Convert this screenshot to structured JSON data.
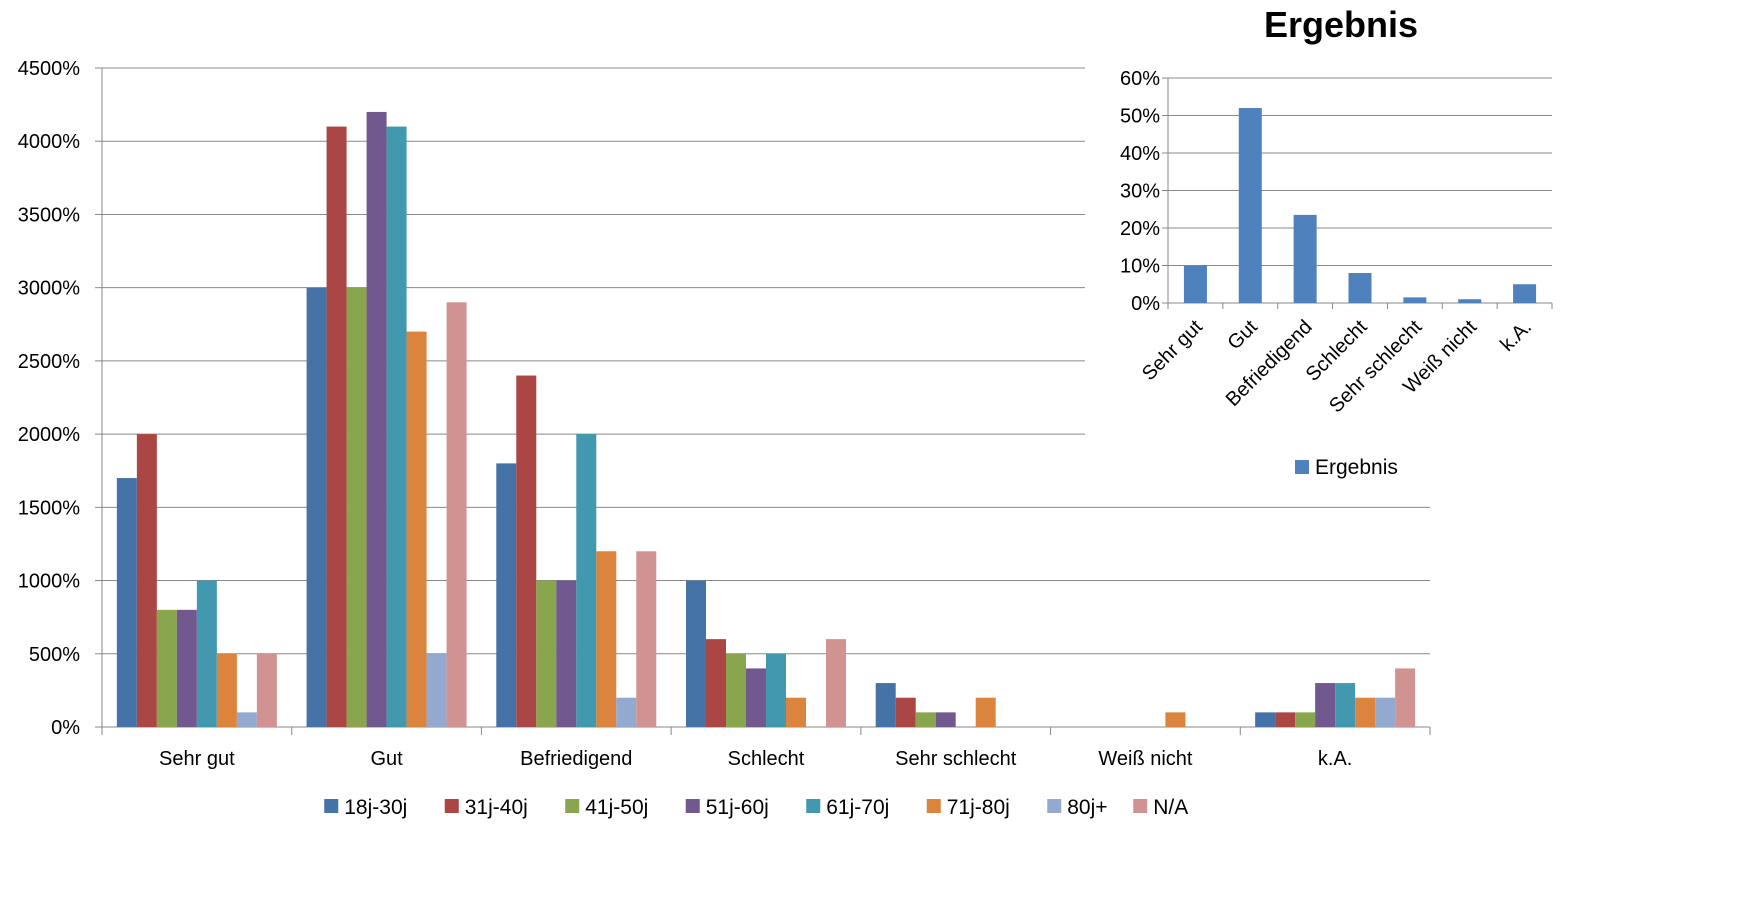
{
  "chart_data": [
    {
      "type": "bar",
      "title": "",
      "xlabel": "",
      "ylabel": "",
      "ylim": [
        0,
        4500
      ],
      "yticks": [
        0,
        500,
        1000,
        1500,
        2000,
        2500,
        3000,
        3500,
        4000,
        4500
      ],
      "ytick_labels": [
        "0%",
        "500%",
        "1000%",
        "1500%",
        "2000%",
        "2500%",
        "3000%",
        "3500%",
        "4000%",
        "4500%"
      ],
      "grid": true,
      "legend_position": "bottom",
      "categories": [
        "Sehr gut",
        "Gut",
        "Befriedigend",
        "Schlecht",
        "Sehr schlecht",
        "Weiß nicht",
        "k.A."
      ],
      "series": [
        {
          "name": "18j-30j",
          "color": "#4572A7",
          "values": [
            1700,
            3000,
            1800,
            1000,
            300,
            0,
            100
          ]
        },
        {
          "name": "31j-40j",
          "color": "#AA4643",
          "values": [
            2000,
            4100,
            2400,
            600,
            200,
            0,
            100
          ]
        },
        {
          "name": "41j-50j",
          "color": "#89A54E",
          "values": [
            800,
            3000,
            1000,
            500,
            100,
            0,
            100
          ]
        },
        {
          "name": "51j-60j",
          "color": "#71588F",
          "values": [
            800,
            4200,
            1000,
            400,
            100,
            0,
            300
          ]
        },
        {
          "name": "61j-70j",
          "color": "#4198AF",
          "values": [
            1000,
            4100,
            2000,
            500,
            0,
            0,
            300
          ]
        },
        {
          "name": "71j-80j",
          "color": "#DB843D",
          "values": [
            500,
            2700,
            1200,
            200,
            200,
            100,
            200
          ]
        },
        {
          "name": "80j+",
          "color": "#93A9CF",
          "values": [
            100,
            500,
            200,
            0,
            0,
            0,
            200
          ]
        },
        {
          "name": "N/A",
          "color": "#D19392",
          "values": [
            500,
            2900,
            1200,
            600,
            0,
            0,
            400
          ]
        }
      ]
    },
    {
      "type": "bar",
      "title": "Ergebnis",
      "xlabel": "",
      "ylabel": "",
      "ylim": [
        0,
        60
      ],
      "yticks": [
        0,
        10,
        20,
        30,
        40,
        50,
        60
      ],
      "ytick_labels": [
        "0%",
        "10%",
        "20%",
        "30%",
        "40%",
        "50%",
        "60%"
      ],
      "grid": true,
      "legend_position": "bottom",
      "categories": [
        "Sehr gut",
        "Gut",
        "Befriedigend",
        "Schlecht",
        "Sehr schlecht",
        "Weiß nicht",
        "k.A."
      ],
      "series": [
        {
          "name": "Ergebnis",
          "color": "#4F81BD",
          "values": [
            10,
            52,
            23.5,
            8,
            1.5,
            1,
            5
          ]
        }
      ]
    }
  ]
}
